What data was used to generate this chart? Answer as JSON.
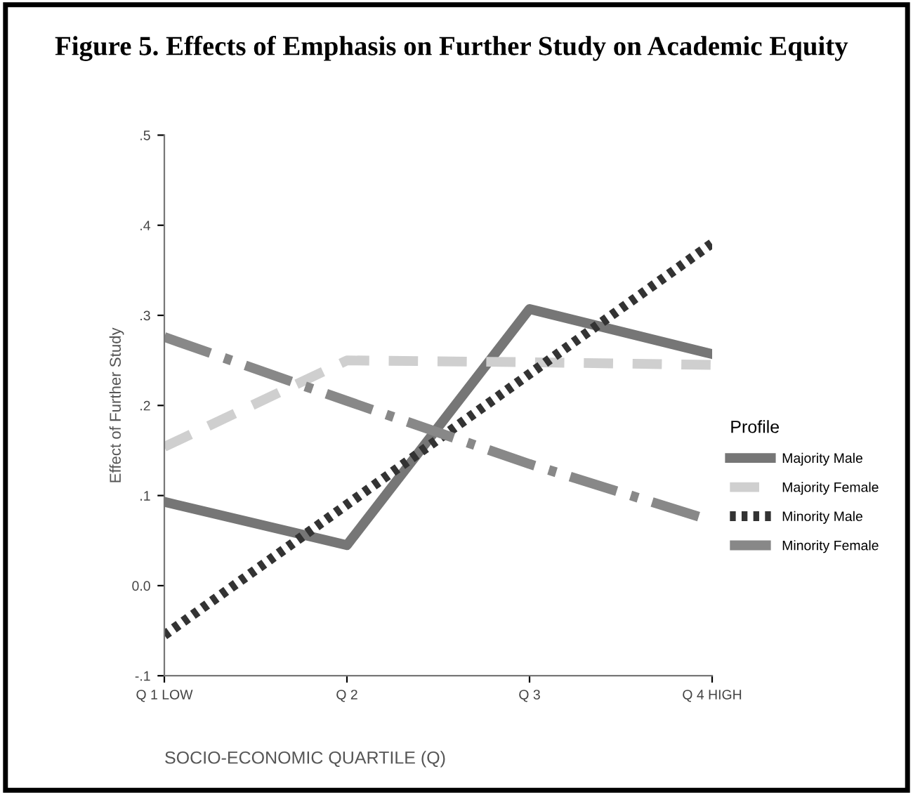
{
  "chart_data": {
    "type": "line",
    "title": "Figure 5. Effects of Emphasis on Further Study on Academic Equity",
    "xlabel": "SOCIO-ECONOMIC QUARTILE (Q)",
    "ylabel": "Effect of Further Study",
    "legend_title": "Profile",
    "legend": "right",
    "grid": false,
    "marker": "none",
    "categories": [
      "Q 1 LOW",
      "Q 2",
      "Q 3",
      "Q 4 HIGH"
    ],
    "ylim": [
      -0.1,
      0.5
    ],
    "yticks": [
      {
        "value": -0.1,
        "label": "-.1"
      },
      {
        "value": 0.0,
        "label": "0.0"
      },
      {
        "value": 0.1,
        "label": ".1"
      },
      {
        "value": 0.2,
        "label": ".2"
      },
      {
        "value": 0.3,
        "label": ".3"
      },
      {
        "value": 0.4,
        "label": ".4"
      },
      {
        "value": 0.5,
        "label": ".5"
      }
    ],
    "series": [
      {
        "name": "Majority Male",
        "color": "#767676",
        "line_style": "solid",
        "values": [
          0.093,
          0.045,
          0.307,
          0.257
        ]
      },
      {
        "name": "Majority Female",
        "color": "#cfcfcf",
        "line_style": "dashed",
        "values": [
          0.154,
          0.25,
          0.248,
          0.245
        ]
      },
      {
        "name": "Minority Male",
        "color": "#333333",
        "line_style": "dotted",
        "values": [
          -0.055,
          0.09,
          0.235,
          0.38
        ]
      },
      {
        "name": "Minority Female",
        "color": "#888888",
        "line_style": "dashdot",
        "values": [
          0.276,
          0.205,
          0.135,
          0.072
        ]
      }
    ]
  }
}
